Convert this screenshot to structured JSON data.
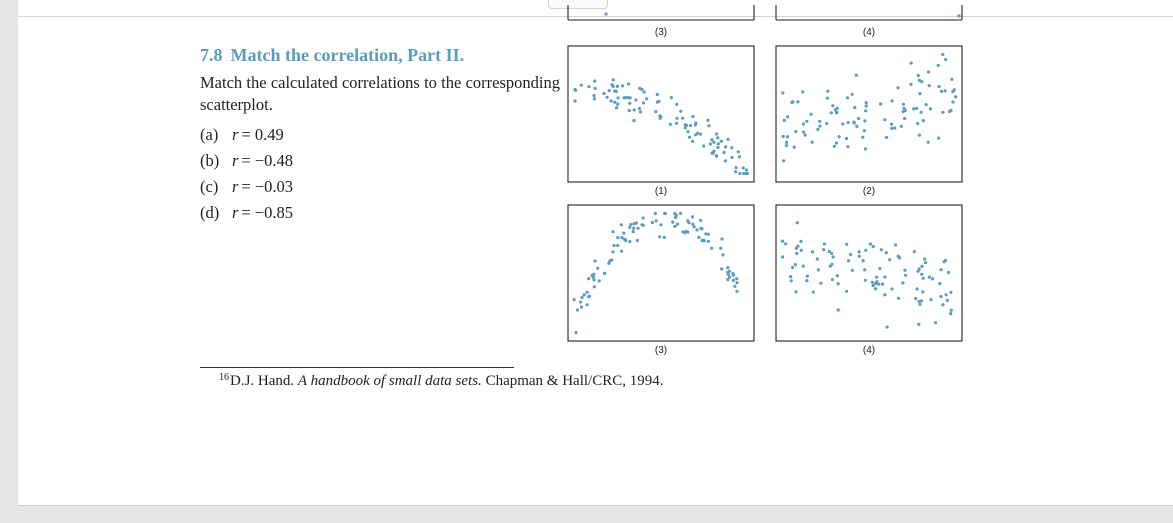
{
  "problem": {
    "number": "7.8",
    "title": "Match the correlation, Part II.",
    "body": "Match the calculated correlations to the corresponding scatterplot.",
    "options": [
      {
        "label": "(a)",
        "r_symbol": "r",
        "value": "= 0.49"
      },
      {
        "label": "(b)",
        "r_symbol": "r",
        "value": "= −0.48"
      },
      {
        "label": "(c)",
        "r_symbol": "r",
        "value": "= −0.03"
      },
      {
        "label": "(d)",
        "r_symbol": "r",
        "value": "= −0.85"
      }
    ]
  },
  "plots": {
    "prev_labels": [
      "(3)",
      "(4)"
    ],
    "labels": [
      "(1)",
      "(2)",
      "(3)",
      "(4)"
    ]
  },
  "chart_data": [
    {
      "type": "scatter",
      "label": "(1)",
      "pattern": "negative-curved",
      "n": 100
    },
    {
      "type": "scatter",
      "label": "(2)",
      "pattern": "positive-weak",
      "n": 100
    },
    {
      "type": "scatter",
      "label": "(3)",
      "pattern": "inverted-u",
      "n": 100
    },
    {
      "type": "scatter",
      "label": "(4)",
      "pattern": "negative-weak",
      "n": 100
    }
  ],
  "footnote": {
    "marker": "16",
    "author": "D.J. Hand.",
    "book": "A handbook of small data sets.",
    "publisher": "Chapman & Hall/CRC, 1994."
  },
  "colors": {
    "accent": "#5b9bbd",
    "dot": "#5b9bbd"
  }
}
